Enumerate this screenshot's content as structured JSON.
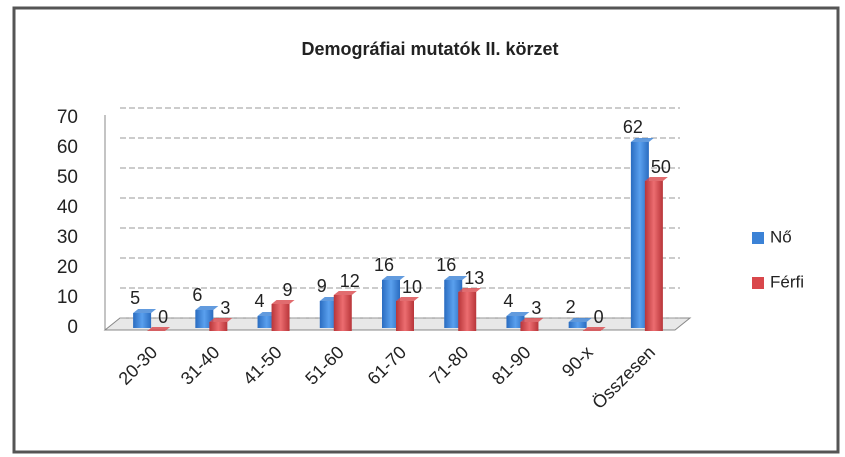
{
  "chart_data": {
    "type": "bar",
    "title": "Demográfiai mutatók II. körzet",
    "categories": [
      "20-30",
      "31-40",
      "41-50",
      "51-60",
      "61-70",
      "71-80",
      "81-90",
      "90-x",
      "Összesen"
    ],
    "series": [
      {
        "name": "Nő",
        "color": "#3b82d6",
        "values": [
          5,
          6,
          4,
          9,
          16,
          16,
          4,
          2,
          62
        ]
      },
      {
        "name": "Férfi",
        "color": "#d9474b",
        "values": [
          0,
          3,
          9,
          12,
          10,
          13,
          3,
          0,
          50
        ]
      }
    ],
    "ylim": [
      0,
      70
    ],
    "yticks": [
      0,
      10,
      20,
      30,
      40,
      50,
      60,
      70
    ],
    "grid": true,
    "legend": "right"
  }
}
